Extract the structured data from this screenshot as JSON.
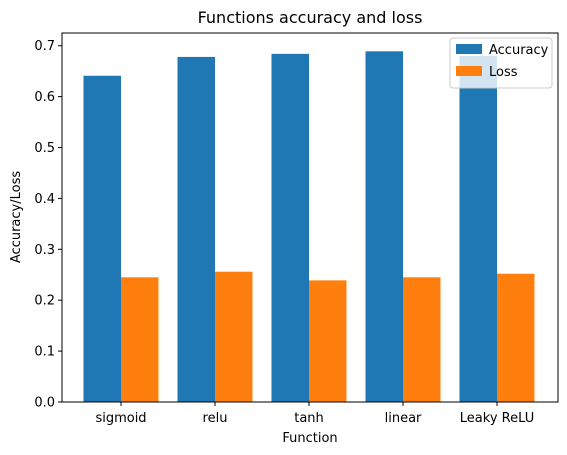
{
  "chart_data": {
    "type": "bar",
    "title": "Functions accuracy and loss",
    "xlabel": "Function",
    "ylabel": "Accuracy/Loss",
    "categories": [
      "sigmoid",
      "relu",
      "tanh",
      "linear",
      "Leaky ReLU"
    ],
    "series": [
      {
        "name": "Accuracy",
        "color": "#1f77b4",
        "values": [
          0.641,
          0.678,
          0.684,
          0.689,
          0.68
        ]
      },
      {
        "name": "Loss",
        "color": "#ff7f0e",
        "values": [
          0.245,
          0.256,
          0.239,
          0.245,
          0.252
        ]
      }
    ],
    "ylim": [
      0,
      0.725
    ],
    "yticks": [
      0.0,
      0.1,
      0.2,
      0.3,
      0.4,
      0.5,
      0.6,
      0.7
    ],
    "ytick_labels": [
      "0.0",
      "0.1",
      "0.2",
      "0.3",
      "0.4",
      "0.5",
      "0.6",
      "0.7"
    ],
    "legend_position": "top-right",
    "grid": false
  }
}
